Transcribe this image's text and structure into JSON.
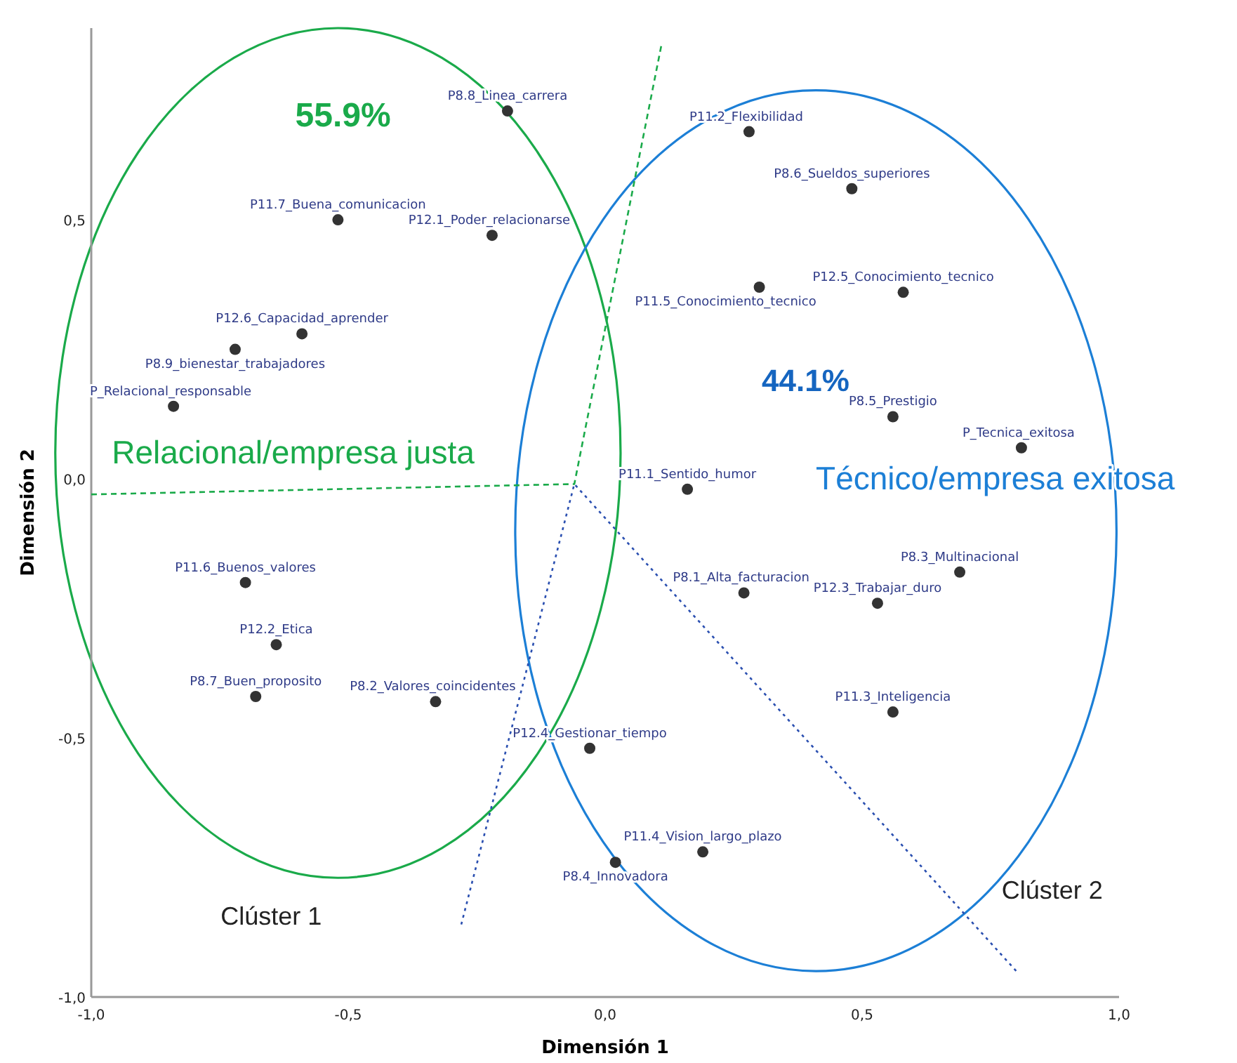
{
  "chart_data": {
    "type": "scatter",
    "xlabel": "Dimensión 1",
    "ylabel": "Dimensión 2",
    "xlim": [
      -1,
      1
    ],
    "ylim": [
      -1,
      0.87
    ],
    "xticks": [
      {
        "value": -1,
        "label": "-1,0"
      },
      {
        "value": -0.5,
        "label": "-0,5"
      },
      {
        "value": 0,
        "label": "0,0"
      },
      {
        "value": 0.5,
        "label": "0,5"
      },
      {
        "value": 1,
        "label": "1,0"
      }
    ],
    "yticks": [
      {
        "value": -1,
        "label": "-1,0"
      },
      {
        "value": -0.5,
        "label": "-0,5"
      },
      {
        "value": 0,
        "label": "0,0"
      },
      {
        "value": 0.5,
        "label": "0,5"
      }
    ],
    "grid": false,
    "legend": false,
    "marker": "circle",
    "annotations": [
      "55.9%",
      "Relacional/empresa justa",
      "44.1%",
      "Técnico/empresa exitosa",
      "Clúster 1",
      "Clúster 2"
    ],
    "series": [
      {
        "name": "P8.8_Linea_carrera",
        "color": "#333333",
        "x": [
          -0.19
        ],
        "values": [
          0.71
        ]
      },
      {
        "name": "P11.7_Buena_comunicacion",
        "color": "#333333",
        "x": [
          -0.52
        ],
        "values": [
          0.5
        ]
      },
      {
        "name": "P12.1_Poder_relacionarse",
        "color": "#333333",
        "x": [
          -0.22
        ],
        "values": [
          0.47
        ]
      },
      {
        "name": "P12.6_Capacidad_aprender",
        "color": "#333333",
        "x": [
          -0.59
        ],
        "values": [
          0.28
        ]
      },
      {
        "name": "P8.9_bienestar_trabajadores",
        "color": "#333333",
        "x": [
          -0.72
        ],
        "values": [
          0.25
        ]
      },
      {
        "name": "P_Relacional_responsable",
        "color": "#333333",
        "x": [
          -0.84
        ],
        "values": [
          0.14
        ]
      },
      {
        "name": "P11.6_Buenos_valores",
        "color": "#333333",
        "x": [
          -0.7
        ],
        "values": [
          -0.2
        ]
      },
      {
        "name": "P12.2_Etica",
        "color": "#333333",
        "x": [
          -0.64
        ],
        "values": [
          -0.32
        ]
      },
      {
        "name": "P8.7_Buen_proposito",
        "color": "#333333",
        "x": [
          -0.68
        ],
        "values": [
          -0.42
        ]
      },
      {
        "name": "P8.2_Valores_coincidentes",
        "color": "#333333",
        "x": [
          -0.33
        ],
        "values": [
          -0.43
        ]
      },
      {
        "name": "P12.4_Gestionar_tiempo",
        "color": "#333333",
        "x": [
          -0.03
        ],
        "values": [
          -0.52
        ]
      },
      {
        "name": "P8.4_Innovadora",
        "color": "#333333",
        "x": [
          0.02
        ],
        "values": [
          -0.74
        ]
      },
      {
        "name": "P11.4_Vision_largo_plazo",
        "color": "#333333",
        "x": [
          0.19
        ],
        "values": [
          -0.72
        ]
      },
      {
        "name": "P11.2_Flexibilidad",
        "color": "#333333",
        "x": [
          0.28
        ],
        "values": [
          0.67
        ]
      },
      {
        "name": "P8.6_Sueldos_superiores",
        "color": "#333333",
        "x": [
          0.48
        ],
        "values": [
          0.56
        ]
      },
      {
        "name": "P11.5_Conocimiento_tecnico",
        "color": "#333333",
        "x": [
          0.3
        ],
        "values": [
          0.37
        ]
      },
      {
        "name": "P12.5_Conocimiento_tecnico",
        "color": "#333333",
        "x": [
          0.58
        ],
        "values": [
          0.36
        ]
      },
      {
        "name": "P8.5_Prestigio",
        "color": "#333333",
        "x": [
          0.56
        ],
        "values": [
          0.12
        ]
      },
      {
        "name": "P_Tecnica_exitosa",
        "color": "#333333",
        "x": [
          0.81
        ],
        "values": [
          0.06
        ]
      },
      {
        "name": "P11.1_Sentido_humor",
        "color": "#333333",
        "x": [
          0.16
        ],
        "values": [
          -0.02
        ]
      },
      {
        "name": "P8.3_Multinacional",
        "color": "#333333",
        "x": [
          0.69
        ],
        "values": [
          -0.18
        ]
      },
      {
        "name": "P8.1_Alta_facturacion",
        "color": "#333333",
        "x": [
          0.27
        ],
        "values": [
          -0.22
        ]
      },
      {
        "name": "P12.3_Trabajar_duro",
        "color": "#333333",
        "x": [
          0.53
        ],
        "values": [
          -0.24
        ]
      },
      {
        "name": "P11.3_Inteligencia",
        "color": "#333333",
        "x": [
          0.56
        ],
        "values": [
          -0.45
        ]
      },
      {
        "type": "line",
        "color": "#1aaa4a",
        "line_style": "dashed",
        "marker": "none",
        "x": [
          -1,
          -0.06,
          0.11
        ],
        "values": [
          -0.03,
          -0.01,
          0.84
        ]
      },
      {
        "type": "line",
        "color": "#2a4fb0",
        "line_style": "dotted",
        "marker": "none",
        "x": [
          -0.28,
          -0.06,
          0.8
        ],
        "values": [
          -0.86,
          -0.01,
          -0.95
        ]
      }
    ]
  }
}
